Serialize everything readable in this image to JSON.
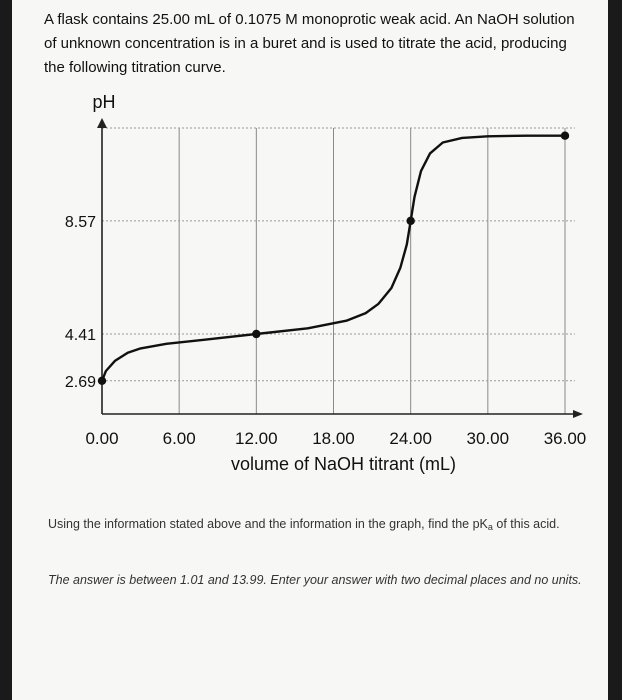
{
  "intro_text": "A flask contains 25.00 mL of 0.1075 M monoprotic weak acid. An NaOH solution of unknown concentration is in a buret and is used to titrate the acid, producing the following titration curve.",
  "chart_data": {
    "type": "line",
    "title": "",
    "ylabel": "pH",
    "xlabel": "volume of NaOH titrant (mL)",
    "x_ticks": [
      "0.00",
      "6.00",
      "12.00",
      "18.00",
      "24.00",
      "30.00",
      "36.00"
    ],
    "y_ticks": [
      "2.69",
      "4.41",
      "8.57"
    ],
    "y_tick_values": [
      2.69,
      4.41,
      8.57
    ],
    "xlim": [
      0,
      36
    ],
    "grid": true,
    "curve_color": "#111111",
    "series": [
      {
        "name": "",
        "x": [
          0,
          0.3,
          1,
          2,
          3,
          5,
          8,
          12,
          16,
          19,
          20.5,
          21.5,
          22.5,
          23.2,
          23.7,
          24,
          24.3,
          24.8,
          25.5,
          26.5,
          28,
          30,
          33,
          36
        ],
        "y": [
          2.69,
          3.05,
          3.42,
          3.72,
          3.88,
          4.05,
          4.2,
          4.41,
          4.62,
          4.9,
          5.18,
          5.52,
          6.1,
          6.85,
          7.7,
          8.57,
          9.45,
          10.4,
          11.05,
          11.45,
          11.62,
          11.68,
          11.7,
          11.7
        ]
      }
    ],
    "points": [
      {
        "x": 0,
        "y": 2.69
      },
      {
        "x": 12,
        "y": 4.41
      },
      {
        "x": 24,
        "y": 8.57
      },
      {
        "x": 36,
        "y": 11.7
      }
    ]
  },
  "question_text_pre": "Using the information stated above and the information in the graph, find the pK",
  "question_sub": "a",
  "question_text_post": " of this acid.",
  "answer_instructions": "The answer is between 1.01 and 13.99. Enter your answer with two decimal places and no units."
}
